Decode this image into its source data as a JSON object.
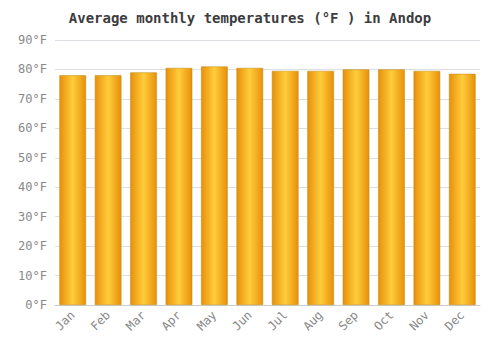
{
  "chart_data": {
    "type": "bar",
    "title": "Average monthly temperatures (°F ) in Andop",
    "categories": [
      "Jan",
      "Feb",
      "Mar",
      "Apr",
      "May",
      "Jun",
      "Jul",
      "Aug",
      "Sep",
      "Oct",
      "Nov",
      "Dec"
    ],
    "values": [
      78,
      78,
      79,
      80.5,
      81,
      80.5,
      79.5,
      79.5,
      80,
      80,
      79.5,
      78.5
    ],
    "color": "#E8900A",
    "ylim": [
      0,
      90
    ],
    "yticks": [
      {
        "value": 0,
        "label": "0°F"
      },
      {
        "value": 10,
        "label": "10°F"
      },
      {
        "value": 20,
        "label": "20°F"
      },
      {
        "value": 30,
        "label": "30°F"
      },
      {
        "value": 40,
        "label": "40°F"
      },
      {
        "value": 50,
        "label": "50°F"
      },
      {
        "value": 60,
        "label": "60°F"
      },
      {
        "value": 70,
        "label": "70°F"
      },
      {
        "value": 80,
        "label": "80°F"
      },
      {
        "value": 90,
        "label": "90°F"
      }
    ],
    "grid": true
  }
}
